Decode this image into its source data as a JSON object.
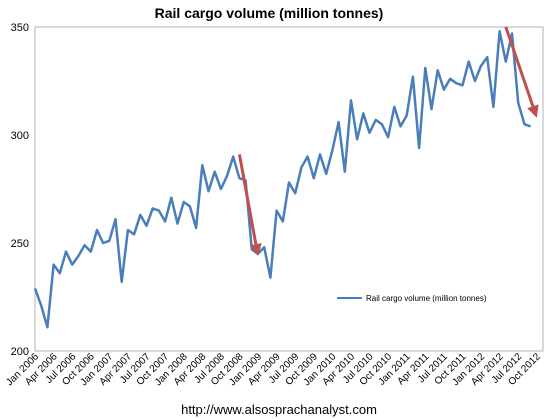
{
  "chart_data": {
    "type": "line",
    "title": "Rail cargo volume (million tonnes)",
    "xlabel": "",
    "ylabel": "",
    "ylim": [
      200,
      350
    ],
    "yticks": [
      "200",
      "250",
      "300",
      "350"
    ],
    "x_tick_labels": [
      "Jan 2006",
      "Apr 2006",
      "Jul 2006",
      "Oct 2006",
      "Jan 2007",
      "Apr 2007",
      "Jul 2007",
      "Oct 2007",
      "Jan 2008",
      "Apr 2008",
      "Jul 2008",
      "Oct 2008",
      "Jan 2009",
      "Apr 2009",
      "Jul 2009",
      "Oct 2009",
      "Jan 2010",
      "Apr 2010",
      "Jul 2010",
      "Oct 2010",
      "Jan 2011",
      "Apr 2011",
      "Jul 2011",
      "Oct 2011",
      "Jan 2012",
      "Apr 2012",
      "Jul 2012",
      "Oct 2012"
    ],
    "grid": false,
    "legend_position": "right-center",
    "series": [
      {
        "name": "Rail cargo volume (million tonnes)",
        "color": "#4a7ebb",
        "x": [
          "2006-01",
          "2006-02",
          "2006-03",
          "2006-04",
          "2006-05",
          "2006-06",
          "2006-07",
          "2006-08",
          "2006-09",
          "2006-10",
          "2006-11",
          "2006-12",
          "2007-01",
          "2007-02",
          "2007-03",
          "2007-04",
          "2007-05",
          "2007-06",
          "2007-07",
          "2007-08",
          "2007-09",
          "2007-10",
          "2007-11",
          "2007-12",
          "2008-01",
          "2008-02",
          "2008-03",
          "2008-04",
          "2008-05",
          "2008-06",
          "2008-07",
          "2008-08",
          "2008-09",
          "2008-10",
          "2008-11",
          "2008-12",
          "2009-01",
          "2009-02",
          "2009-03",
          "2009-04",
          "2009-05",
          "2009-06",
          "2009-07",
          "2009-08",
          "2009-09",
          "2009-10",
          "2009-11",
          "2009-12",
          "2010-01",
          "2010-02",
          "2010-03",
          "2010-04",
          "2010-05",
          "2010-06",
          "2010-07",
          "2010-08",
          "2010-09",
          "2010-10",
          "2010-11",
          "2010-12",
          "2011-01",
          "2011-02",
          "2011-03",
          "2011-04",
          "2011-05",
          "2011-06",
          "2011-07",
          "2011-08",
          "2011-09",
          "2011-10",
          "2011-11",
          "2011-12",
          "2012-01",
          "2012-02",
          "2012-03",
          "2012-04",
          "2012-05",
          "2012-06",
          "2012-07",
          "2012-08",
          "2012-09"
        ],
        "values": [
          229,
          221,
          211,
          240,
          236,
          246,
          240,
          244,
          249,
          246,
          256,
          250,
          251,
          261,
          232,
          256,
          254,
          263,
          258,
          266,
          265,
          260,
          271,
          259,
          269,
          267,
          257,
          286,
          274,
          283,
          275,
          281,
          290,
          280,
          279,
          247,
          245,
          248,
          234,
          265,
          260,
          278,
          273,
          285,
          290,
          280,
          291,
          282,
          293,
          306,
          283,
          316,
          298,
          310,
          301,
          307,
          305,
          299,
          313,
          304,
          309,
          327,
          294,
          331,
          312,
          330,
          321,
          326,
          324,
          323,
          334,
          325,
          332,
          336,
          313,
          348,
          334,
          347,
          315,
          305,
          304
        ]
      }
    ],
    "annotations": [
      {
        "type": "arrow",
        "color": "#c0504d",
        "from": [
          "2008-10",
          291
        ],
        "to": [
          "2009-01",
          244
        ]
      },
      {
        "type": "arrow",
        "color": "#c0504d",
        "from": [
          "2012-05",
          350
        ],
        "to": [
          "2012-10",
          308
        ]
      }
    ]
  },
  "footer": "http://www.alsosprachanalyst.com"
}
